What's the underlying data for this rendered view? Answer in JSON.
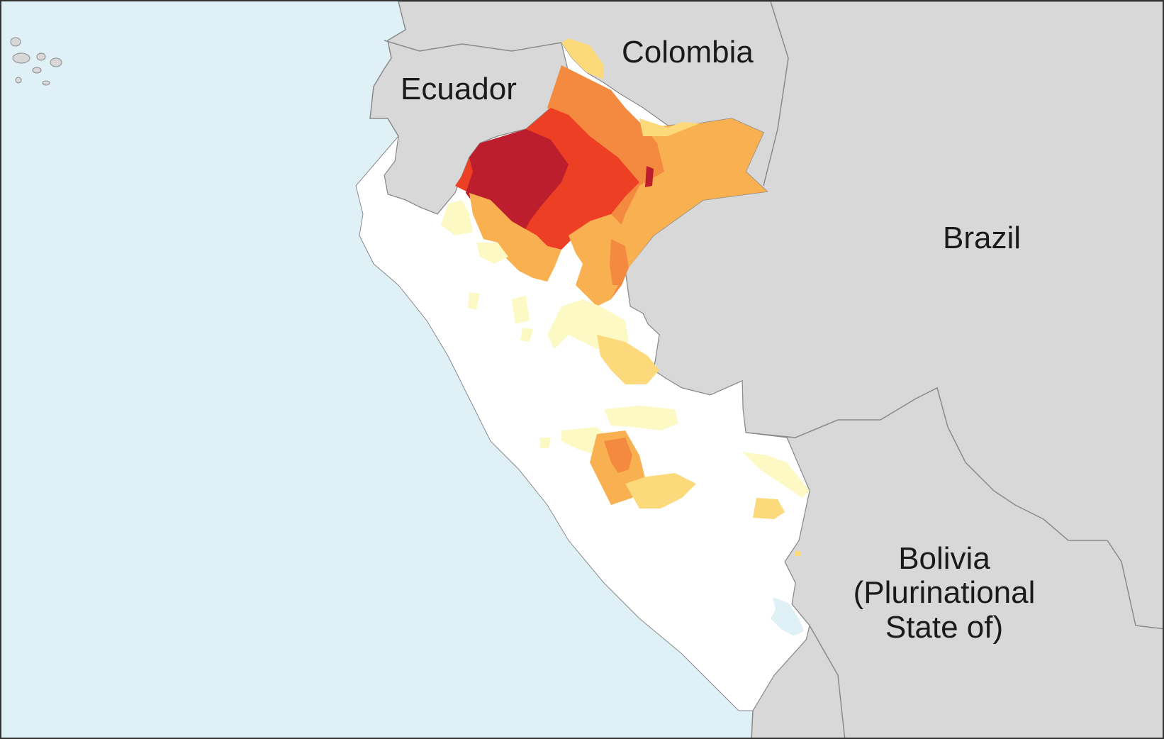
{
  "map": {
    "colors": {
      "ocean": "#dff0f7",
      "neighbor_land": "#d8d8d8",
      "neighbor_border": "#8a8a8a",
      "peru_base": "#ffffff",
      "lake": "#dff0f7",
      "class_1": "#fdf9c4",
      "class_2": "#fcd97a",
      "class_3": "#f9b050",
      "class_4": "#f48a40",
      "class_5": "#ed3f24",
      "class_6": "#bd1e2d"
    },
    "country_labels": {
      "ecuador": "Ecuador",
      "colombia": "Colombia",
      "brazil": "Brazil",
      "bolivia": [
        "Bolivia",
        "(Plurinational",
        "State of)"
      ]
    }
  }
}
